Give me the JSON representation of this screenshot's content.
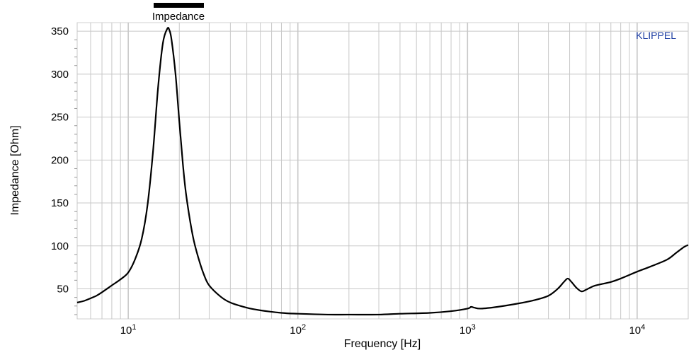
{
  "chart_data": {
    "type": "line",
    "title": "",
    "xlabel": "Frequency  [Hz]",
    "ylabel": "Impedance  [Ohm]",
    "xscale": "log",
    "xlim": [
      5,
      20000
    ],
    "ylim": [
      15,
      360
    ],
    "grid": true,
    "legend": {
      "placement": "top-left",
      "entries": [
        "Impedance"
      ]
    },
    "watermark": "KLIPPEL",
    "colors": {
      "series": "#000000",
      "grid": "#c8c8c8",
      "frame": "#d2d2d2",
      "brand": "#1f3fa3"
    },
    "y_ticks": [
      50,
      100,
      150,
      200,
      250,
      300,
      350
    ],
    "y_tick_labels": [
      "50",
      "100",
      "150",
      "200",
      "250",
      "300",
      "350"
    ],
    "x_ticks": [
      10,
      100,
      1000,
      10000
    ],
    "x_tick_labels": [
      {
        "base": "10",
        "exp": "1"
      },
      {
        "base": "10",
        "exp": "2"
      },
      {
        "base": "10",
        "exp": "3"
      },
      {
        "base": "10",
        "exp": "4"
      }
    ],
    "series": [
      {
        "name": "Impedance",
        "x": [
          5,
          5.5,
          6,
          6.5,
          7,
          8,
          9,
          10,
          11,
          12,
          13,
          14,
          15,
          16,
          17,
          17.5,
          18,
          19,
          20,
          21,
          22,
          24,
          26,
          28,
          30,
          35,
          40,
          50,
          60,
          80,
          100,
          150,
          200,
          300,
          400,
          600,
          800,
          1000,
          1050,
          1100,
          1200,
          1500,
          2000,
          2500,
          3000,
          3400,
          3700,
          3900,
          4100,
          4400,
          4700,
          5000,
          5500,
          6000,
          7000,
          8000,
          10000,
          12000,
          15000,
          17000,
          19000,
          20000
        ],
        "y": [
          34,
          36,
          39,
          42,
          46,
          54,
          61,
          69,
          85,
          108,
          148,
          210,
          285,
          336,
          353,
          351,
          340,
          300,
          245,
          195,
          158,
          112,
          85,
          66,
          54,
          41,
          34,
          28,
          25,
          22,
          21,
          20,
          20,
          20,
          21,
          22,
          24,
          27,
          29,
          28,
          27,
          29,
          33,
          37,
          42,
          50,
          58,
          62,
          58,
          51,
          47,
          49,
          53,
          55,
          58,
          62,
          70,
          76,
          84,
          92,
          99,
          101
        ]
      }
    ]
  }
}
